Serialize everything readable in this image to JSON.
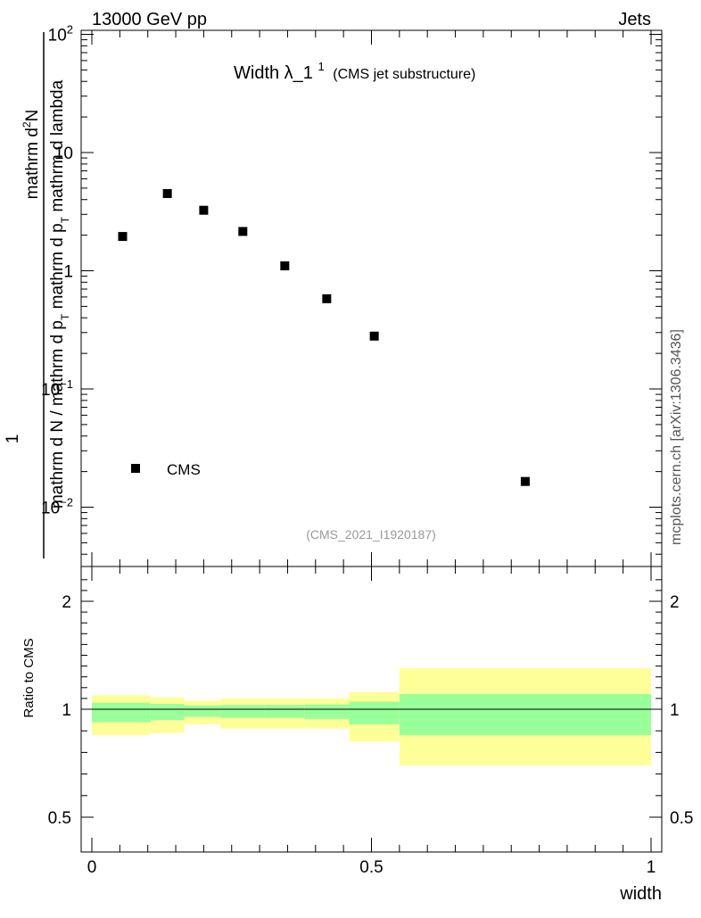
{
  "header": {
    "left": "13000 GeV pp",
    "right": "Jets"
  },
  "title": {
    "main": "Width λ_1",
    "superscript": "1",
    "sub": "(CMS jet substructure)"
  },
  "side_label": "mcplots.cern.ch [arXiv:1306.3436]",
  "analysis_label": "(CMS_2021_I1920187)",
  "ylabel_main": {
    "one": "1",
    "num_text": "mathrm d",
    "num_sup": "2",
    "num_end": "N",
    "den_pre": "mathrm d N / mathrm d p",
    "den_sub1": "T",
    "den_mid": " mathrm d p",
    "den_sub2": "T",
    "den_end": " mathrm d lambda"
  },
  "ylabel_ratio": "Ratio to CMS",
  "xlabel": "width",
  "legend": {
    "label": "CMS"
  },
  "main_ticks": [
    {
      "value": 0.01,
      "base": "10",
      "exp": "−2"
    },
    {
      "value": 0.1,
      "base": "10",
      "exp": "−1"
    },
    {
      "value": 1,
      "base": "1",
      "exp": ""
    },
    {
      "value": 10,
      "base": "10",
      "exp": ""
    },
    {
      "value": 100,
      "base": "10",
      "exp": "2"
    }
  ],
  "ratio_ticks": [
    {
      "value": 0.5,
      "label": "0.5"
    },
    {
      "value": 1,
      "label": "1"
    },
    {
      "value": 2,
      "label": "2"
    }
  ],
  "x_ticks": [
    {
      "value": 0,
      "label": "0"
    },
    {
      "value": 0.5,
      "label": "0.5"
    },
    {
      "value": 1,
      "label": "1"
    }
  ],
  "colors": {
    "band_inner": "#99ff99",
    "band_outer": "#ffff99",
    "marker": "#000000"
  },
  "chart_data": {
    "type": "scatter",
    "x_range": [
      0,
      1
    ],
    "main_yscale": "log",
    "main_ylim": [
      0.003,
      110
    ],
    "ratio_ylim": [
      0.42,
      2.3
    ],
    "series": [
      {
        "name": "CMS",
        "x": [
          0.055,
          0.135,
          0.2,
          0.27,
          0.345,
          0.42,
          0.505,
          0.775
        ],
        "y": [
          1.95,
          4.5,
          3.25,
          2.15,
          1.1,
          0.58,
          0.28,
          0.0165
        ]
      }
    ],
    "ratio_bands": [
      {
        "x0": 0.0,
        "x1": 0.105,
        "inner": [
          0.94,
          1.06
        ],
        "outer": [
          0.88,
          1.13
        ]
      },
      {
        "x0": 0.105,
        "x1": 0.165,
        "inner": [
          0.95,
          1.05
        ],
        "outer": [
          0.89,
          1.11
        ]
      },
      {
        "x0": 0.165,
        "x1": 0.23,
        "inner": [
          0.965,
          1.035
        ],
        "outer": [
          0.93,
          1.08
        ]
      },
      {
        "x0": 0.23,
        "x1": 0.31,
        "inner": [
          0.96,
          1.04
        ],
        "outer": [
          0.91,
          1.1
        ]
      },
      {
        "x0": 0.31,
        "x1": 0.38,
        "inner": [
          0.96,
          1.04
        ],
        "outer": [
          0.91,
          1.1
        ]
      },
      {
        "x0": 0.38,
        "x1": 0.46,
        "inner": [
          0.955,
          1.045
        ],
        "outer": [
          0.91,
          1.1
        ]
      },
      {
        "x0": 0.46,
        "x1": 0.55,
        "inner": [
          0.93,
          1.07
        ],
        "outer": [
          0.85,
          1.16
        ]
      },
      {
        "x0": 0.55,
        "x1": 1.0,
        "inner": [
          0.88,
          1.14
        ],
        "outer": [
          0.74,
          1.38
        ]
      }
    ]
  }
}
